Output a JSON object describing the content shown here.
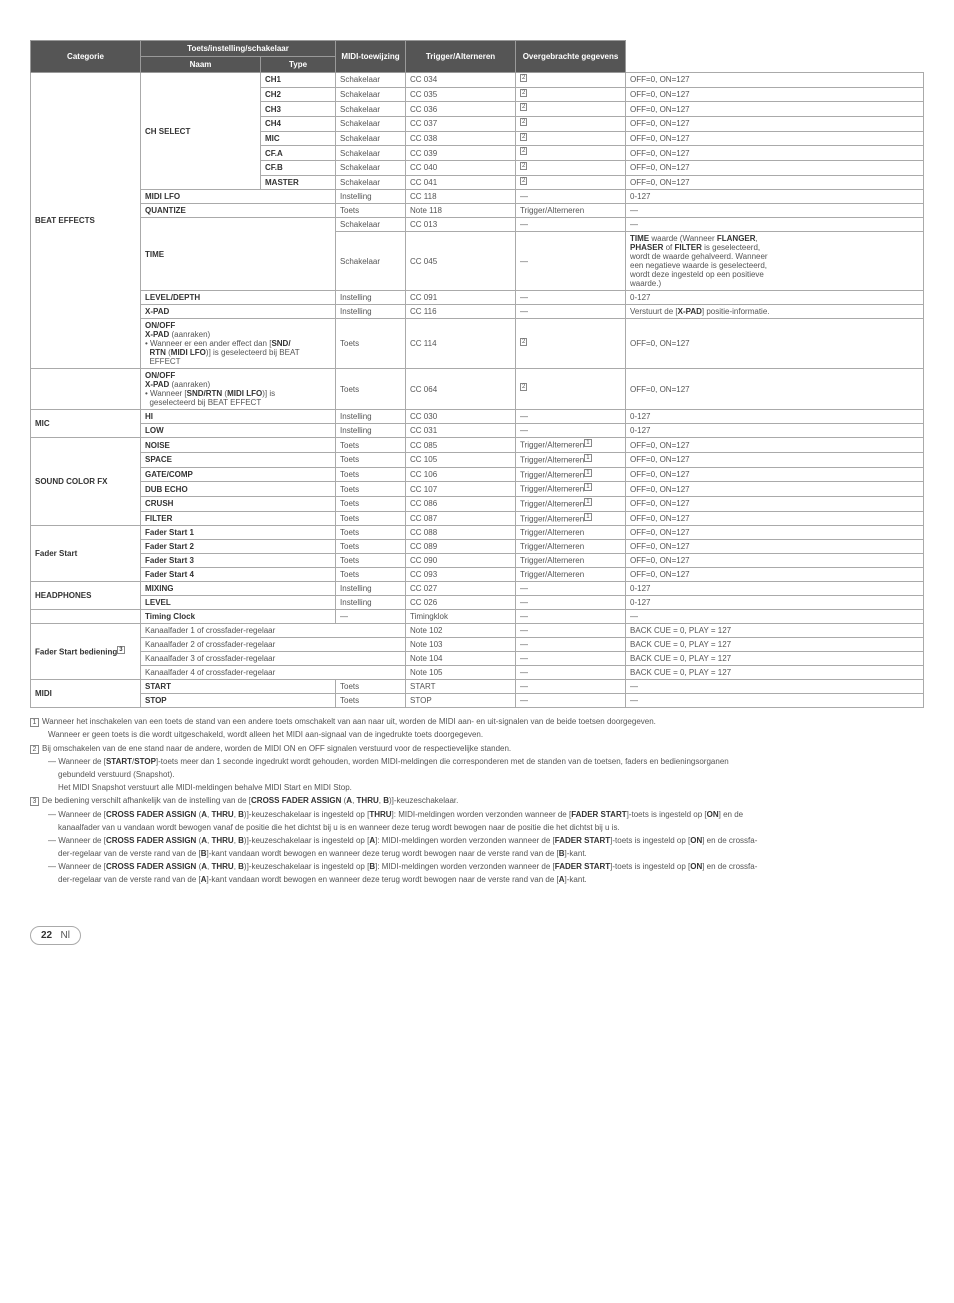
{
  "headers": {
    "categorie": "Categorie",
    "toets": "Toets/instelling/schakelaar",
    "naam": "Naam",
    "type": "Type",
    "midi": "MIDI-toewijzing",
    "trigger": "Trigger/Alterneren",
    "over": "Overgebrachte gegevens"
  },
  "cats": {
    "beat": "BEAT EFFECTS",
    "mic": "MIC",
    "sound": "SOUND COLOR FX",
    "fader": "Fader Start",
    "phones": "HEADPHONES",
    "fsb": "Fader Start",
    "fsb_suffix": " bediening",
    "midi_cat": "MIDI"
  },
  "chselect": {
    "name": "CH SELECT",
    "rows": [
      {
        "sub": "CH1",
        "type": "Schakelaar",
        "midi": "CC 034",
        "trig": "2",
        "over": "OFF=0, ON=127"
      },
      {
        "sub": "CH2",
        "type": "Schakelaar",
        "midi": "CC 035",
        "trig": "2",
        "over": "OFF=0, ON=127"
      },
      {
        "sub": "CH3",
        "type": "Schakelaar",
        "midi": "CC 036",
        "trig": "2",
        "over": "OFF=0, ON=127"
      },
      {
        "sub": "CH4",
        "type": "Schakelaar",
        "midi": "CC 037",
        "trig": "2",
        "over": "OFF=0, ON=127"
      },
      {
        "sub": "MIC",
        "type": "Schakelaar",
        "midi": "CC 038",
        "trig": "2",
        "over": "OFF=0, ON=127"
      },
      {
        "sub": "CF.A",
        "type": "Schakelaar",
        "midi": "CC 039",
        "trig": "2",
        "over": "OFF=0, ON=127"
      },
      {
        "sub": "CF.B",
        "type": "Schakelaar",
        "midi": "CC 040",
        "trig": "2",
        "over": "OFF=0, ON=127"
      },
      {
        "sub": "MASTER",
        "type": "Schakelaar",
        "midi": "CC 041",
        "trig": "2",
        "over": "OFF=0, ON=127"
      }
    ]
  },
  "midilfo": {
    "name": "MIDI LFO",
    "type": "Instelling",
    "midi": "CC 118",
    "trig": "—",
    "over": "0-127"
  },
  "quantize": {
    "name": "QUANTIZE",
    "type": "Toets",
    "midi": "Note 118",
    "trig": "Trigger/Alterneren",
    "over": "—"
  },
  "time_top": {
    "type": "Schakelaar",
    "midi": "CC 013",
    "trig": "—",
    "over": "—"
  },
  "time": {
    "name": "TIME",
    "type": "Schakelaar",
    "midi": "CC 045",
    "trig": "—",
    "over_l1": "TIME",
    "over_l1b": " waarde (Wanneer ",
    "over_l1c": "FLANGER",
    "over_l1d": ", ",
    "over_l2a": "PHASER",
    "over_l2b": " of ",
    "over_l2c": "FILTER",
    "over_l2d": " is geselecteerd,",
    "over_l3": "wordt de waarde gehalveerd. Wanneer",
    "over_l4": "een negatieve waarde is geselecteerd,",
    "over_l5": "wordt deze ingesteld op een positieve",
    "over_l6": "waarde.)"
  },
  "leveldepth": {
    "name": "LEVEL/DEPTH",
    "type": "Instelling",
    "midi": "CC 091",
    "trig": "—",
    "over": "0-127"
  },
  "xpad": {
    "name": "X-PAD",
    "type": "Instelling",
    "midi": "CC 116",
    "trig": "—",
    "over": "Verstuurt de [",
    "over_b": "X-PAD",
    "over_c": "] positie-informatie."
  },
  "onoff1": {
    "l1": "ON/OFF",
    "l2": "X-PAD",
    "l2b": " (aanraken)",
    "l3": "• Wanneer er een ander effect dan [",
    "l3b": "SND/",
    "l4": "RTN",
    "l4b": " (",
    "l4c": "MIDI LFO",
    "l4d": ")] is geselecteerd bij BEAT",
    "l5": "EFFECT",
    "type": "Toets",
    "midi": "CC 114",
    "trig": "2",
    "over": "OFF=0, ON=127"
  },
  "onoff2": {
    "l1": "ON/OFF",
    "l2": "X-PAD",
    "l2b": " (aanraken)",
    "l3": "• Wanneer [",
    "l3b": "SND/RTN",
    "l3c": " (",
    "l3d": "MIDI LFO",
    "l3e": ")] is",
    "l4": "geselecteerd bij BEAT EFFECT",
    "type": "Toets",
    "midi": "CC 064",
    "trig": "2",
    "over": "OFF=0, ON=127"
  },
  "mic_rows": [
    {
      "name": "HI",
      "type": "Instelling",
      "midi": "CC 030",
      "trig": "—",
      "over": "0-127"
    },
    {
      "name": "LOW",
      "type": "Instelling",
      "midi": "CC 031",
      "trig": "—",
      "over": "0-127"
    }
  ],
  "sound_rows": [
    {
      "name": "NOISE",
      "type": "Toets",
      "midi": "CC 085",
      "trig": "Trigger/Alterneren",
      "sup": "1",
      "over": "OFF=0, ON=127"
    },
    {
      "name": "SPACE",
      "type": "Toets",
      "midi": "CC 105",
      "trig": "Trigger/Alterneren",
      "sup": "1",
      "over": "OFF=0, ON=127"
    },
    {
      "name": "GATE/COMP",
      "type": "Toets",
      "midi": "CC 106",
      "trig": "Trigger/Alterneren",
      "sup": "1",
      "over": "OFF=0, ON=127"
    },
    {
      "name": "DUB ECHO",
      "type": "Toets",
      "midi": "CC 107",
      "trig": "Trigger/Alterneren",
      "sup": "1",
      "over": "OFF=0, ON=127"
    },
    {
      "name": "CRUSH",
      "type": "Toets",
      "midi": "CC 086",
      "trig": "Trigger/Alterneren",
      "sup": "1",
      "over": "OFF=0, ON=127"
    },
    {
      "name": "FILTER",
      "type": "Toets",
      "midi": "CC 087",
      "trig": "Trigger/Alterneren",
      "sup": "1",
      "over": "OFF=0, ON=127"
    }
  ],
  "fader_rows": [
    {
      "name": "Fader Start 1",
      "type": "Toets",
      "midi": "CC 088",
      "trig": "Trigger/Alterneren",
      "over": "OFF=0, ON=127"
    },
    {
      "name": "Fader Start 2",
      "type": "Toets",
      "midi": "CC 089",
      "trig": "Trigger/Alterneren",
      "over": "OFF=0, ON=127"
    },
    {
      "name": "Fader Start 3",
      "type": "Toets",
      "midi": "CC 090",
      "trig": "Trigger/Alterneren",
      "over": "OFF=0, ON=127"
    },
    {
      "name": "Fader Start 4",
      "type": "Toets",
      "midi": "CC 093",
      "trig": "Trigger/Alterneren",
      "over": "OFF=0, ON=127"
    }
  ],
  "phones_rows": [
    {
      "name": "MIXING",
      "type": "Instelling",
      "midi": "CC 027",
      "trig": "—",
      "over": "0-127"
    },
    {
      "name": "LEVEL",
      "type": "Instelling",
      "midi": "CC 026",
      "trig": "—",
      "over": "0-127"
    }
  ],
  "timing": {
    "name": "Timing Clock",
    "type": "—",
    "midi": "Timingklok",
    "trig": "—",
    "over": "—"
  },
  "fsb_rows": [
    {
      "name": "Kanaalfader 1 of crossfader-regelaar",
      "type": "",
      "midi": "Note 102",
      "trig": "—",
      "over": "BACK CUE = 0, PLAY = 127"
    },
    {
      "name": "Kanaalfader 2 of crossfader-regelaar",
      "type": "",
      "midi": "Note 103",
      "trig": "—",
      "over": "BACK CUE = 0, PLAY = 127"
    },
    {
      "name": "Kanaalfader 3 of crossfader-regelaar",
      "type": "",
      "midi": "Note 104",
      "trig": "—",
      "over": "BACK CUE = 0, PLAY = 127"
    },
    {
      "name": "Kanaalfader 4 of crossfader-regelaar",
      "type": "",
      "midi": "Note 105",
      "trig": "—",
      "over": "BACK CUE = 0, PLAY = 127"
    }
  ],
  "midi_rows": [
    {
      "name": "START",
      "type": "Toets",
      "midi": "START",
      "trig": "—",
      "over": "—"
    },
    {
      "name": "STOP",
      "type": "Toets",
      "midi": "STOP",
      "trig": "—",
      "over": "—"
    }
  ],
  "footnotes": {
    "n1a": "Wanneer het inschakelen van een toets de stand van een andere toets omschakelt van aan naar uit, worden de MIDI aan- en uit-signalen van de beide toetsen doorgegeven.",
    "n1b": "Wanneer er geen toets is die wordt uitgeschakeld, wordt alleen het MIDI aan-signaal van de ingedrukte toets doorgegeven.",
    "n2a": "Bij omschakelen van de ene stand naar de andere, worden de MIDI ON en OFF signalen verstuurd voor de respectievelijke standen.",
    "n2b_1": "— Wanneer de [",
    "n2b_2": "START",
    "n2b_3": "/",
    "n2b_4": "STOP",
    "n2b_5": "]-toets meer dan 1 seconde ingedrukt wordt gehouden, worden MIDI-meldingen die corresponderen met de standen van de toetsen, faders en bedieningsorganen",
    "n2c": "gebundeld verstuurd (Snapshot).",
    "n2d": "Het MIDI Snapshot verstuurt alle MIDI-meldingen behalve MIDI Start en MIDI Stop.",
    "n3a_1": "De bediening verschilt afhankelijk van de instelling van de [",
    "n3a_2": "CROSS FADER ASSIGN",
    "n3a_3": " (",
    "n3a_4": "A",
    "n3a_5": ", ",
    "n3a_6": "THRU",
    "n3a_7": ", ",
    "n3a_8": "B",
    "n3a_9": ")]-keuzeschakelaar.",
    "n3b_1": "— Wanneer de [",
    "n3b_2": "CROSS FADER ASSIGN",
    "n3b_3": " (",
    "n3b_4": "A",
    "n3b_5": ", ",
    "n3b_6": "THRU",
    "n3b_7": ", ",
    "n3b_8": "B",
    "n3b_9": ")]-keuzeschakelaar is ingesteld op [",
    "n3b_10": "THRU",
    "n3b_11": "]: MIDI-meldingen worden verzonden wanneer de [",
    "n3b_12": "FADER START",
    "n3b_13": "]-toets is ingesteld op [",
    "n3b_14": "ON",
    "n3b_15": "] en de",
    "n3b_16": "kanaalfader van u vandaan wordt bewogen vanaf de positie die het dichtst bij u is en wanneer deze terug wordt bewogen naar de positie die het dichtst bij u is.",
    "n3c_1": "— Wanneer de [",
    "n3c_2": "CROSS FADER ASSIGN",
    "n3c_3": " (",
    "n3c_4": "A",
    "n3c_5": ", ",
    "n3c_6": "THRU",
    "n3c_7": ", ",
    "n3c_8": "B",
    "n3c_9": ")]-keuzeschakelaar is ingesteld op [",
    "n3c_10": "A",
    "n3c_11": "]: MIDI-meldingen worden verzonden wanneer de [",
    "n3c_12": "FADER START",
    "n3c_13": "]-toets is ingesteld op [",
    "n3c_14": "ON",
    "n3c_15": "] en de crossfa-",
    "n3c_16": "der-regelaar van de verste rand van de [",
    "n3c_17": "B",
    "n3c_18": "]-kant vandaan wordt bewogen en wanneer deze terug wordt bewogen naar de verste rand van de [",
    "n3c_19": "B",
    "n3c_20": "]-kant.",
    "n3d_1": "— Wanneer de [",
    "n3d_2": "CROSS FADER ASSIGN",
    "n3d_3": " (",
    "n3d_4": "A",
    "n3d_5": ", ",
    "n3d_6": "THRU",
    "n3d_7": ", ",
    "n3d_8": "B",
    "n3d_9": ")]-keuzeschakelaar is ingesteld op [",
    "n3d_10": "B",
    "n3d_11": "]: MIDI-meldingen worden verzonden wanneer de [",
    "n3d_12": "FADER START",
    "n3d_13": "]-toets is ingesteld op [",
    "n3d_14": "ON",
    "n3d_15": "] en de crossfa-",
    "n3d_16": "der-regelaar van de verste rand van de [",
    "n3d_17": "A",
    "n3d_18": "]-kant vandaan wordt bewogen en wanneer deze terug wordt bewogen naar de verste rand van de [",
    "n3d_19": "A",
    "n3d_20": "]-kant."
  },
  "page": {
    "num": "22",
    "lang": "Nl"
  }
}
